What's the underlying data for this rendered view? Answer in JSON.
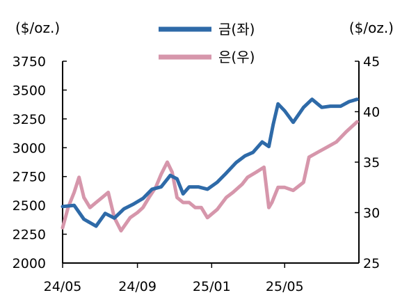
{
  "chart_data": {
    "type": "line",
    "y_left_unit": "($/oz.)",
    "y_right_unit": "($/oz.)",
    "y_left_lim": [
      2000,
      3750
    ],
    "y_right_lim": [
      25,
      45
    ],
    "y_left_ticks": [
      "3750",
      "3500",
      "3250",
      "3000",
      "2750",
      "2500",
      "2250",
      "2000"
    ],
    "y_right_ticks": [
      "45",
      "40",
      "35",
      "30",
      "25"
    ],
    "x_ticks": [
      "24/05",
      "24/09",
      "25/01",
      "25/05"
    ],
    "legend_position": "top-center",
    "grid": false,
    "series": [
      {
        "name": "금(좌)",
        "axis": "left",
        "color": "#2e6aa8",
        "x": [
          "2024-05-01",
          "2024-05-20",
          "2024-06-05",
          "2024-06-25",
          "2024-07-10",
          "2024-07-25",
          "2024-08-10",
          "2024-08-25",
          "2024-09-10",
          "2024-09-25",
          "2024-10-10",
          "2024-10-25",
          "2024-11-05",
          "2024-11-15",
          "2024-11-25",
          "2024-12-10",
          "2024-12-25",
          "2025-01-10",
          "2025-01-25",
          "2025-02-10",
          "2025-02-25",
          "2025-03-10",
          "2025-03-25",
          "2025-04-05",
          "2025-04-12",
          "2025-04-20",
          "2025-05-01",
          "2025-05-15",
          "2025-06-01",
          "2025-06-15",
          "2025-07-01",
          "2025-07-15",
          "2025-08-01",
          "2025-08-15",
          "2025-08-28"
        ],
        "values": [
          2490,
          2500,
          2380,
          2320,
          2430,
          2390,
          2470,
          2510,
          2560,
          2640,
          2660,
          2760,
          2730,
          2600,
          2660,
          2660,
          2640,
          2700,
          2780,
          2870,
          2930,
          2960,
          3050,
          3010,
          3200,
          3380,
          3320,
          3220,
          3350,
          3420,
          3350,
          3360,
          3360,
          3400,
          3420
        ]
      },
      {
        "name": "은(우)",
        "axis": "right",
        "color": "#d696ab",
        "x": [
          "2024-05-01",
          "2024-05-10",
          "2024-05-20",
          "2024-05-28",
          "2024-06-05",
          "2024-06-15",
          "2024-06-25",
          "2024-07-05",
          "2024-07-15",
          "2024-07-25",
          "2024-08-05",
          "2024-08-20",
          "2024-09-01",
          "2024-09-10",
          "2024-09-20",
          "2024-10-01",
          "2024-10-10",
          "2024-10-20",
          "2024-10-28",
          "2024-11-05",
          "2024-11-15",
          "2024-11-25",
          "2024-12-05",
          "2024-12-15",
          "2024-12-25",
          "2025-01-10",
          "2025-01-25",
          "2025-02-05",
          "2025-02-20",
          "2025-03-01",
          "2025-03-15",
          "2025-03-28",
          "2025-04-05",
          "2025-04-10",
          "2025-04-20",
          "2025-05-01",
          "2025-05-15",
          "2025-06-01",
          "2025-06-10",
          "2025-06-25",
          "2025-07-10",
          "2025-07-25",
          "2025-08-10",
          "2025-08-28"
        ],
        "values": [
          28.5,
          30.5,
          32.0,
          33.5,
          31.5,
          30.5,
          31.0,
          31.5,
          32.0,
          29.5,
          28.2,
          29.5,
          30.0,
          30.5,
          31.5,
          32.5,
          33.8,
          35.0,
          34.0,
          31.5,
          31.0,
          31.0,
          30.5,
          30.5,
          29.5,
          30.3,
          31.5,
          32.0,
          32.8,
          33.5,
          34.0,
          34.5,
          30.5,
          31.0,
          32.5,
          32.5,
          32.2,
          33.0,
          35.5,
          36.0,
          36.5,
          37.0,
          38.0,
          39.0
        ]
      }
    ]
  }
}
